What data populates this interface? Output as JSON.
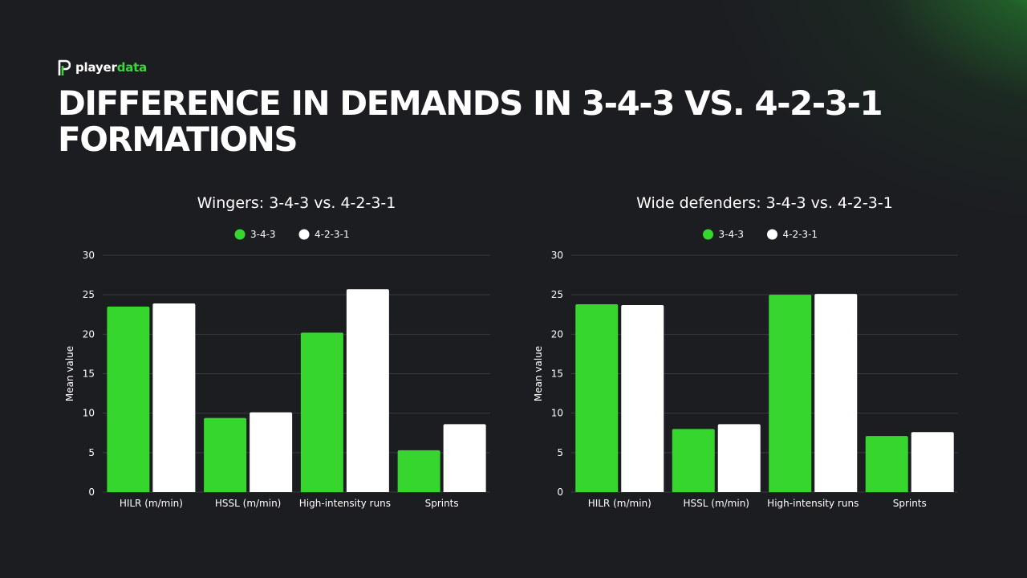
{
  "brand": {
    "name_part1": "player",
    "name_part2": "data",
    "accent": "#3bd63b"
  },
  "page": {
    "title_line1": "DIFFERENCE IN DEMANDS IN 3-4-3 VS. 4-2-3-1",
    "title_line2": "FORMATIONS"
  },
  "chart_data": [
    {
      "type": "bar",
      "title": "Wingers: 3-4-3 vs. 4-2-3-1",
      "ylabel": "Mean value",
      "xlabel": "",
      "ylim": [
        0,
        30
      ],
      "yticks": [
        0,
        5,
        10,
        15,
        20,
        25,
        30
      ],
      "grid": true,
      "legend": "top-center",
      "categories": [
        "HILR (m/min)",
        "HSSL (m/min)",
        "High-intensity runs",
        "Sprints"
      ],
      "series": [
        {
          "name": "3-4-3",
          "color": "#37d62f",
          "values": [
            23.5,
            9.4,
            20.2,
            5.3
          ]
        },
        {
          "name": "4-2-3-1",
          "color": "#ffffff",
          "values": [
            23.9,
            10.1,
            25.7,
            8.6
          ]
        }
      ]
    },
    {
      "type": "bar",
      "title": "Wide defenders: 3-4-3 vs. 4-2-3-1",
      "ylabel": "Mean value",
      "xlabel": "",
      "ylim": [
        0,
        30
      ],
      "yticks": [
        0,
        5,
        10,
        15,
        20,
        25,
        30
      ],
      "grid": true,
      "legend": "top-center",
      "categories": [
        "HILR (m/min)",
        "HSSL (m/min)",
        "High-intensity runs",
        "Sprints"
      ],
      "series": [
        {
          "name": "3-4-3",
          "color": "#37d62f",
          "values": [
            23.8,
            8.0,
            25.0,
            7.1
          ]
        },
        {
          "name": "4-2-3-1",
          "color": "#ffffff",
          "values": [
            23.7,
            8.6,
            25.1,
            7.6
          ]
        }
      ]
    }
  ]
}
